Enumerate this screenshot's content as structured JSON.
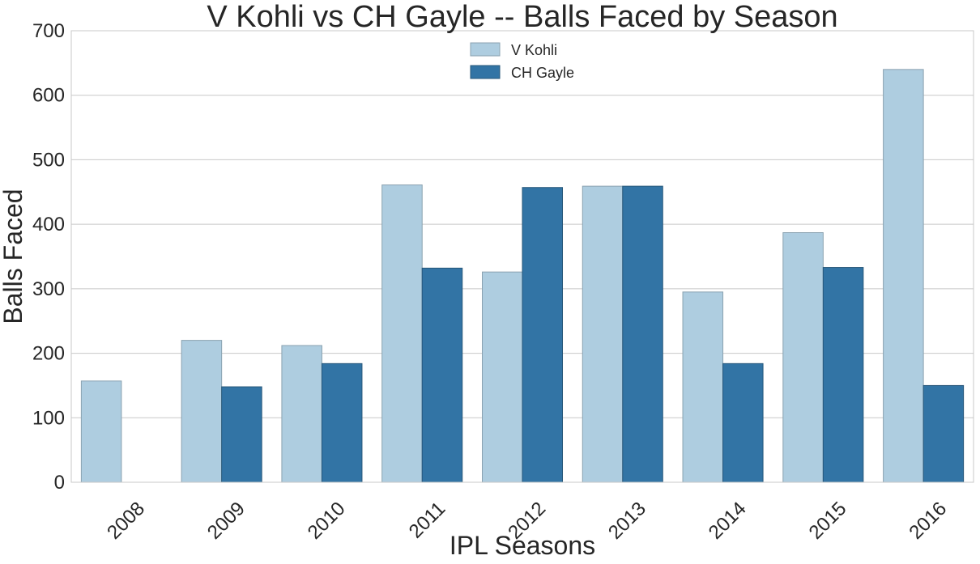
{
  "chart_data": {
    "type": "bar",
    "title": "V Kohli vs CH Gayle -- Balls Faced by Season",
    "xlabel": "IPL Seasons",
    "ylabel": "Balls Faced",
    "ylim": [
      0,
      700
    ],
    "yticks": [
      "0",
      "100",
      "200",
      "300",
      "400",
      "500",
      "600",
      "700"
    ],
    "categories": [
      "2008",
      "2009",
      "2010",
      "2011",
      "2012",
      "2013",
      "2014",
      "2015",
      "2016"
    ],
    "series": [
      {
        "name": "V Kohli",
        "color": "#aecde0",
        "values": [
          157,
          220,
          212,
          461,
          326,
          459,
          295,
          387,
          640
        ]
      },
      {
        "name": "CH Gayle",
        "color": "#3274a5",
        "values": [
          0,
          148,
          184,
          332,
          457,
          459,
          184,
          333,
          150
        ]
      }
    ],
    "grid": true,
    "legend_position": "top-center"
  }
}
